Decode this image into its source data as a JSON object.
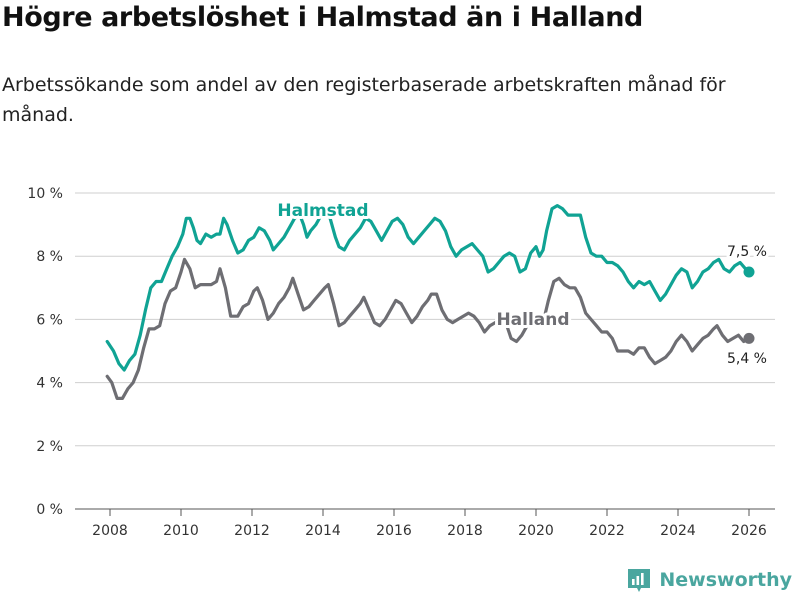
{
  "title": "Högre arbetslöshet i Halmstad än i Halland",
  "subtitle": "Arbetssökande som andel av den registerbaserade arbetskraften månad för månad.",
  "brand": {
    "name": "Newsworthy",
    "color": "#4aa69f"
  },
  "chart_data": {
    "type": "line",
    "title": "Högre arbetslöshet i Halmstad än i Halland",
    "subtitle": "Arbetssökande som andel av den registerbaserade arbetskraften månad för månad.",
    "xlabel": "",
    "ylabel": "",
    "xlim": [
      2007.5,
      2026.5
    ],
    "ylim": [
      0,
      10
    ],
    "grid": "horizontal",
    "x_ticks": [
      "2008",
      "2010",
      "2012",
      "2014",
      "2016",
      "2018",
      "2020",
      "2022",
      "2024",
      "2026"
    ],
    "y_ticks": [
      "0 %",
      "2 %",
      "4 %",
      "6 %",
      "8 %",
      "10 %"
    ],
    "series": [
      {
        "name": "Halmstad",
        "color": "#10a394",
        "end_label": "7,5 %",
        "points": [
          [
            2007.92,
            5.3
          ],
          [
            2008.1,
            5.0
          ],
          [
            2008.25,
            4.6
          ],
          [
            2008.4,
            4.4
          ],
          [
            2008.55,
            4.7
          ],
          [
            2008.7,
            4.9
          ],
          [
            2008.85,
            5.5
          ],
          [
            2009.0,
            6.3
          ],
          [
            2009.15,
            7.0
          ],
          [
            2009.3,
            7.2
          ],
          [
            2009.45,
            7.2
          ],
          [
            2009.6,
            7.6
          ],
          [
            2009.75,
            8.0
          ],
          [
            2009.9,
            8.3
          ],
          [
            2010.05,
            8.7
          ],
          [
            2010.15,
            9.2
          ],
          [
            2010.25,
            9.2
          ],
          [
            2010.35,
            8.9
          ],
          [
            2010.45,
            8.5
          ],
          [
            2010.55,
            8.4
          ],
          [
            2010.7,
            8.7
          ],
          [
            2010.85,
            8.6
          ],
          [
            2011.0,
            8.7
          ],
          [
            2011.1,
            8.7
          ],
          [
            2011.2,
            9.2
          ],
          [
            2011.3,
            9.0
          ],
          [
            2011.45,
            8.5
          ],
          [
            2011.6,
            8.1
          ],
          [
            2011.75,
            8.2
          ],
          [
            2011.9,
            8.5
          ],
          [
            2012.05,
            8.6
          ],
          [
            2012.2,
            8.9
          ],
          [
            2012.35,
            8.8
          ],
          [
            2012.5,
            8.5
          ],
          [
            2012.6,
            8.2
          ],
          [
            2012.75,
            8.4
          ],
          [
            2012.9,
            8.6
          ],
          [
            2013.05,
            8.9
          ],
          [
            2013.2,
            9.2
          ],
          [
            2013.35,
            9.3
          ],
          [
            2013.45,
            9.0
          ],
          [
            2013.55,
            8.6
          ],
          [
            2013.65,
            8.8
          ],
          [
            2013.8,
            9.0
          ],
          [
            2013.95,
            9.3
          ],
          [
            2014.1,
            9.5
          ],
          [
            2014.2,
            9.2
          ],
          [
            2014.35,
            8.6
          ],
          [
            2014.45,
            8.3
          ],
          [
            2014.6,
            8.2
          ],
          [
            2014.75,
            8.5
          ],
          [
            2014.9,
            8.7
          ],
          [
            2015.05,
            8.9
          ],
          [
            2015.2,
            9.2
          ],
          [
            2015.35,
            9.1
          ],
          [
            2015.5,
            8.8
          ],
          [
            2015.65,
            8.5
          ],
          [
            2015.8,
            8.8
          ],
          [
            2015.95,
            9.1
          ],
          [
            2016.1,
            9.2
          ],
          [
            2016.25,
            9.0
          ],
          [
            2016.4,
            8.6
          ],
          [
            2016.55,
            8.4
          ],
          [
            2016.7,
            8.6
          ],
          [
            2016.85,
            8.8
          ],
          [
            2017.0,
            9.0
          ],
          [
            2017.15,
            9.2
          ],
          [
            2017.3,
            9.1
          ],
          [
            2017.45,
            8.8
          ],
          [
            2017.6,
            8.3
          ],
          [
            2017.75,
            8.0
          ],
          [
            2017.9,
            8.2
          ],
          [
            2018.05,
            8.3
          ],
          [
            2018.2,
            8.4
          ],
          [
            2018.35,
            8.2
          ],
          [
            2018.5,
            8.0
          ],
          [
            2018.65,
            7.5
          ],
          [
            2018.8,
            7.6
          ],
          [
            2018.95,
            7.8
          ],
          [
            2019.1,
            8.0
          ],
          [
            2019.25,
            8.1
          ],
          [
            2019.4,
            8.0
          ],
          [
            2019.55,
            7.5
          ],
          [
            2019.7,
            7.6
          ],
          [
            2019.85,
            8.1
          ],
          [
            2020.0,
            8.3
          ],
          [
            2020.1,
            8.0
          ],
          [
            2020.2,
            8.2
          ],
          [
            2020.3,
            8.8
          ],
          [
            2020.45,
            9.5
          ],
          [
            2020.6,
            9.6
          ],
          [
            2020.75,
            9.5
          ],
          [
            2020.9,
            9.3
          ],
          [
            2021.1,
            9.3
          ],
          [
            2021.25,
            9.3
          ],
          [
            2021.4,
            8.6
          ],
          [
            2021.55,
            8.1
          ],
          [
            2021.7,
            8.0
          ],
          [
            2021.85,
            8.0
          ],
          [
            2022.0,
            7.8
          ],
          [
            2022.15,
            7.8
          ],
          [
            2022.3,
            7.7
          ],
          [
            2022.45,
            7.5
          ],
          [
            2022.6,
            7.2
          ],
          [
            2022.75,
            7.0
          ],
          [
            2022.9,
            7.2
          ],
          [
            2023.05,
            7.1
          ],
          [
            2023.2,
            7.2
          ],
          [
            2023.35,
            6.9
          ],
          [
            2023.5,
            6.6
          ],
          [
            2023.65,
            6.8
          ],
          [
            2023.8,
            7.1
          ],
          [
            2023.95,
            7.4
          ],
          [
            2024.1,
            7.6
          ],
          [
            2024.25,
            7.5
          ],
          [
            2024.4,
            7.0
          ],
          [
            2024.55,
            7.2
          ],
          [
            2024.7,
            7.5
          ],
          [
            2024.85,
            7.6
          ],
          [
            2025.0,
            7.8
          ],
          [
            2025.15,
            7.9
          ],
          [
            2025.3,
            7.6
          ],
          [
            2025.45,
            7.5
          ],
          [
            2025.6,
            7.7
          ],
          [
            2025.75,
            7.8
          ],
          [
            2025.9,
            7.6
          ],
          [
            2026.0,
            7.5
          ]
        ]
      },
      {
        "name": "Halland",
        "color": "#6e6e73",
        "end_label": "5,4 %",
        "points": [
          [
            2007.92,
            4.2
          ],
          [
            2008.05,
            4.0
          ],
          [
            2008.2,
            3.5
          ],
          [
            2008.35,
            3.5
          ],
          [
            2008.5,
            3.8
          ],
          [
            2008.65,
            4.0
          ],
          [
            2008.8,
            4.4
          ],
          [
            2008.95,
            5.1
          ],
          [
            2009.1,
            5.7
          ],
          [
            2009.25,
            5.7
          ],
          [
            2009.4,
            5.8
          ],
          [
            2009.55,
            6.5
          ],
          [
            2009.7,
            6.9
          ],
          [
            2009.85,
            7.0
          ],
          [
            2010.0,
            7.5
          ],
          [
            2010.1,
            7.9
          ],
          [
            2010.25,
            7.6
          ],
          [
            2010.4,
            7.0
          ],
          [
            2010.55,
            7.1
          ],
          [
            2010.7,
            7.1
          ],
          [
            2010.85,
            7.1
          ],
          [
            2011.0,
            7.2
          ],
          [
            2011.1,
            7.6
          ],
          [
            2011.25,
            7.0
          ],
          [
            2011.4,
            6.1
          ],
          [
            2011.6,
            6.1
          ],
          [
            2011.75,
            6.4
          ],
          [
            2011.9,
            6.5
          ],
          [
            2012.05,
            6.9
          ],
          [
            2012.15,
            7.0
          ],
          [
            2012.3,
            6.6
          ],
          [
            2012.45,
            6.0
          ],
          [
            2012.6,
            6.2
          ],
          [
            2012.75,
            6.5
          ],
          [
            2012.9,
            6.7
          ],
          [
            2013.05,
            7.0
          ],
          [
            2013.15,
            7.3
          ],
          [
            2013.3,
            6.8
          ],
          [
            2013.45,
            6.3
          ],
          [
            2013.6,
            6.4
          ],
          [
            2013.75,
            6.6
          ],
          [
            2013.9,
            6.8
          ],
          [
            2014.05,
            7.0
          ],
          [
            2014.15,
            7.1
          ],
          [
            2014.3,
            6.5
          ],
          [
            2014.45,
            5.8
          ],
          [
            2014.6,
            5.9
          ],
          [
            2014.75,
            6.1
          ],
          [
            2014.9,
            6.3
          ],
          [
            2015.05,
            6.5
          ],
          [
            2015.15,
            6.7
          ],
          [
            2015.3,
            6.3
          ],
          [
            2015.45,
            5.9
          ],
          [
            2015.6,
            5.8
          ],
          [
            2015.75,
            6.0
          ],
          [
            2015.9,
            6.3
          ],
          [
            2016.05,
            6.6
          ],
          [
            2016.2,
            6.5
          ],
          [
            2016.35,
            6.2
          ],
          [
            2016.5,
            5.9
          ],
          [
            2016.65,
            6.1
          ],
          [
            2016.8,
            6.4
          ],
          [
            2016.95,
            6.6
          ],
          [
            2017.05,
            6.8
          ],
          [
            2017.2,
            6.8
          ],
          [
            2017.35,
            6.3
          ],
          [
            2017.5,
            6.0
          ],
          [
            2017.65,
            5.9
          ],
          [
            2017.8,
            6.0
          ],
          [
            2017.95,
            6.1
          ],
          [
            2018.1,
            6.2
          ],
          [
            2018.25,
            6.1
          ],
          [
            2018.4,
            5.9
          ],
          [
            2018.55,
            5.6
          ],
          [
            2018.7,
            5.8
          ],
          [
            2018.85,
            5.9
          ],
          [
            2019.0,
            6.0
          ],
          [
            2019.15,
            5.9
          ],
          [
            2019.3,
            5.4
          ],
          [
            2019.45,
            5.3
          ],
          [
            2019.6,
            5.5
          ],
          [
            2019.75,
            5.8
          ],
          [
            2019.9,
            6.0
          ],
          [
            2020.05,
            6.0
          ],
          [
            2020.2,
            5.9
          ],
          [
            2020.35,
            6.6
          ],
          [
            2020.5,
            7.2
          ],
          [
            2020.65,
            7.3
          ],
          [
            2020.8,
            7.1
          ],
          [
            2020.95,
            7.0
          ],
          [
            2021.1,
            7.0
          ],
          [
            2021.25,
            6.7
          ],
          [
            2021.4,
            6.2
          ],
          [
            2021.55,
            6.0
          ],
          [
            2021.7,
            5.8
          ],
          [
            2021.85,
            5.6
          ],
          [
            2022.0,
            5.6
          ],
          [
            2022.15,
            5.4
          ],
          [
            2022.3,
            5.0
          ],
          [
            2022.45,
            5.0
          ],
          [
            2022.6,
            5.0
          ],
          [
            2022.75,
            4.9
          ],
          [
            2022.9,
            5.1
          ],
          [
            2023.05,
            5.1
          ],
          [
            2023.2,
            4.8
          ],
          [
            2023.35,
            4.6
          ],
          [
            2023.5,
            4.7
          ],
          [
            2023.65,
            4.8
          ],
          [
            2023.8,
            5.0
          ],
          [
            2023.95,
            5.3
          ],
          [
            2024.1,
            5.5
          ],
          [
            2024.25,
            5.3
          ],
          [
            2024.4,
            5.0
          ],
          [
            2024.55,
            5.2
          ],
          [
            2024.7,
            5.4
          ],
          [
            2024.85,
            5.5
          ],
          [
            2025.0,
            5.7
          ],
          [
            2025.1,
            5.8
          ],
          [
            2025.25,
            5.5
          ],
          [
            2025.4,
            5.3
          ],
          [
            2025.55,
            5.4
          ],
          [
            2025.7,
            5.5
          ],
          [
            2025.85,
            5.3
          ],
          [
            2026.0,
            5.4
          ]
        ]
      }
    ]
  }
}
